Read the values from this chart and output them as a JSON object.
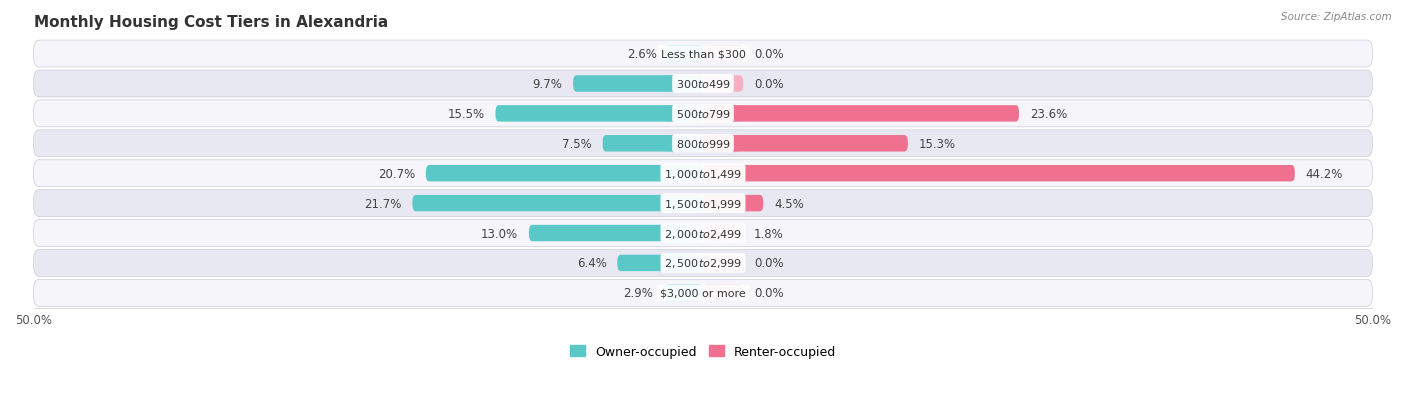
{
  "title": "Monthly Housing Cost Tiers in Alexandria",
  "source": "Source: ZipAtlas.com",
  "categories": [
    "Less than $300",
    "$300 to $499",
    "$500 to $799",
    "$800 to $999",
    "$1,000 to $1,499",
    "$1,500 to $1,999",
    "$2,000 to $2,499",
    "$2,500 to $2,999",
    "$3,000 or more"
  ],
  "owner_values": [
    2.6,
    9.7,
    15.5,
    7.5,
    20.7,
    21.7,
    13.0,
    6.4,
    2.9
  ],
  "renter_values": [
    0.0,
    0.0,
    23.6,
    15.3,
    44.2,
    4.5,
    1.8,
    0.0,
    0.0
  ],
  "owner_color": "#5BC8C8",
  "owner_color_light": "#8EDDDD",
  "renter_color": "#F07090",
  "renter_color_light": "#F8B0C0",
  "bg_color": "#ffffff",
  "row_bg_even": "#f5f5fa",
  "row_bg_odd": "#e8e8f2",
  "axis_limit": 50.0,
  "label_fontsize": 8.5,
  "title_fontsize": 11,
  "legend_fontsize": 9,
  "bar_height": 0.55,
  "stub_value": 3.0
}
